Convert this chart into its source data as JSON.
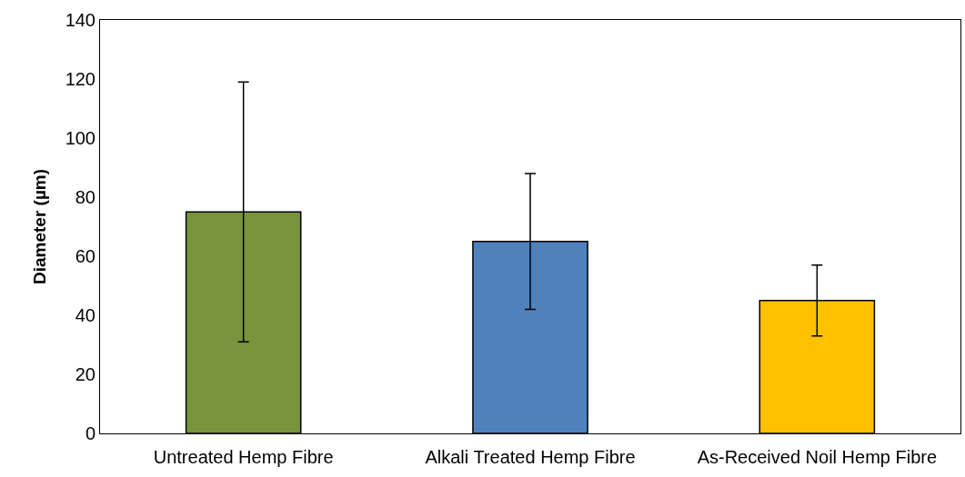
{
  "chart_data": {
    "type": "bar",
    "ylabel": "Diameter (µm)",
    "categories": [
      "Untreated Hemp Fibre",
      "Alkali Treated Hemp Fibre",
      "As-Received Noil Hemp Fibre"
    ],
    "values": [
      75,
      65,
      45
    ],
    "colors": [
      "#77933c",
      "#4f81bd",
      "#ffc000"
    ],
    "errors": [
      44,
      23,
      12
    ],
    "ylim": [
      0,
      140
    ],
    "yticks": [
      0,
      20,
      40,
      60,
      80,
      100,
      120,
      140
    ]
  }
}
